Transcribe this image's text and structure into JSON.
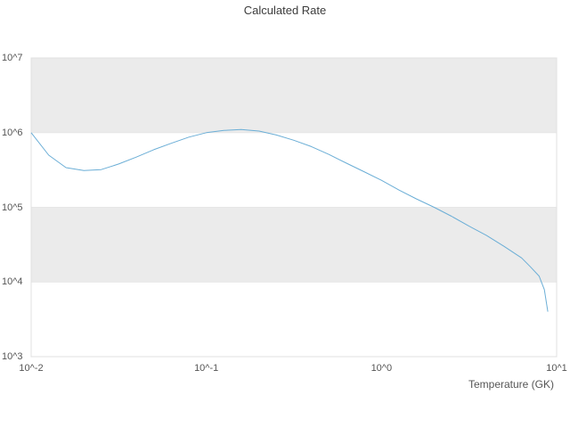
{
  "chart_data": {
    "type": "line",
    "title": "Calculated Rate",
    "xlabel": "Temperature (GK)",
    "ylabel": "",
    "xscale": "log",
    "yscale": "log",
    "xlim": [
      0.01,
      10
    ],
    "ylim": [
      1000,
      10000000
    ],
    "xticks": {
      "values": [
        0.01,
        0.1,
        1,
        10
      ],
      "labels": [
        "10^-2",
        "10^-1",
        "10^0",
        "10^1"
      ]
    },
    "yticks": {
      "values": [
        1000,
        10000,
        100000,
        1000000,
        10000000
      ],
      "labels": [
        "10^3",
        "10^4",
        "10^5",
        "10^6",
        "10^7"
      ]
    },
    "series": [
      {
        "name": "calculated-rate",
        "x": [
          0.01,
          0.0126,
          0.0158,
          0.02,
          0.0251,
          0.0316,
          0.0398,
          0.0501,
          0.0631,
          0.0794,
          0.1,
          0.126,
          0.158,
          0.2,
          0.251,
          0.316,
          0.398,
          0.501,
          0.631,
          0.794,
          1.0,
          1.26,
          1.58,
          2.0,
          2.51,
          3.16,
          3.98,
          5.01,
          6.31,
          7.08,
          7.94,
          8.51,
          8.91
        ],
        "y": [
          1000000,
          500000,
          340000,
          310000,
          320000,
          380000,
          470000,
          590000,
          720000,
          870000,
          1000000,
          1070000,
          1100000,
          1050000,
          930000,
          790000,
          650000,
          510000,
          390000,
          300000,
          230000,
          170000,
          130000,
          100000,
          76000,
          56000,
          42000,
          30000,
          21000,
          16000,
          12000,
          7900,
          4000
        ]
      }
    ],
    "shaded_bands": [
      [
        1000000,
        10000000
      ],
      [
        10000,
        100000
      ]
    ],
    "grid": "horizontal-bands",
    "legend": "none",
    "colors": {
      "line": "#6baed6",
      "band": "#ebebeb",
      "frame": "#e0e0e0",
      "grid": "#e6e6e6",
      "text": "#555555",
      "title": "#3c3c3c"
    }
  }
}
